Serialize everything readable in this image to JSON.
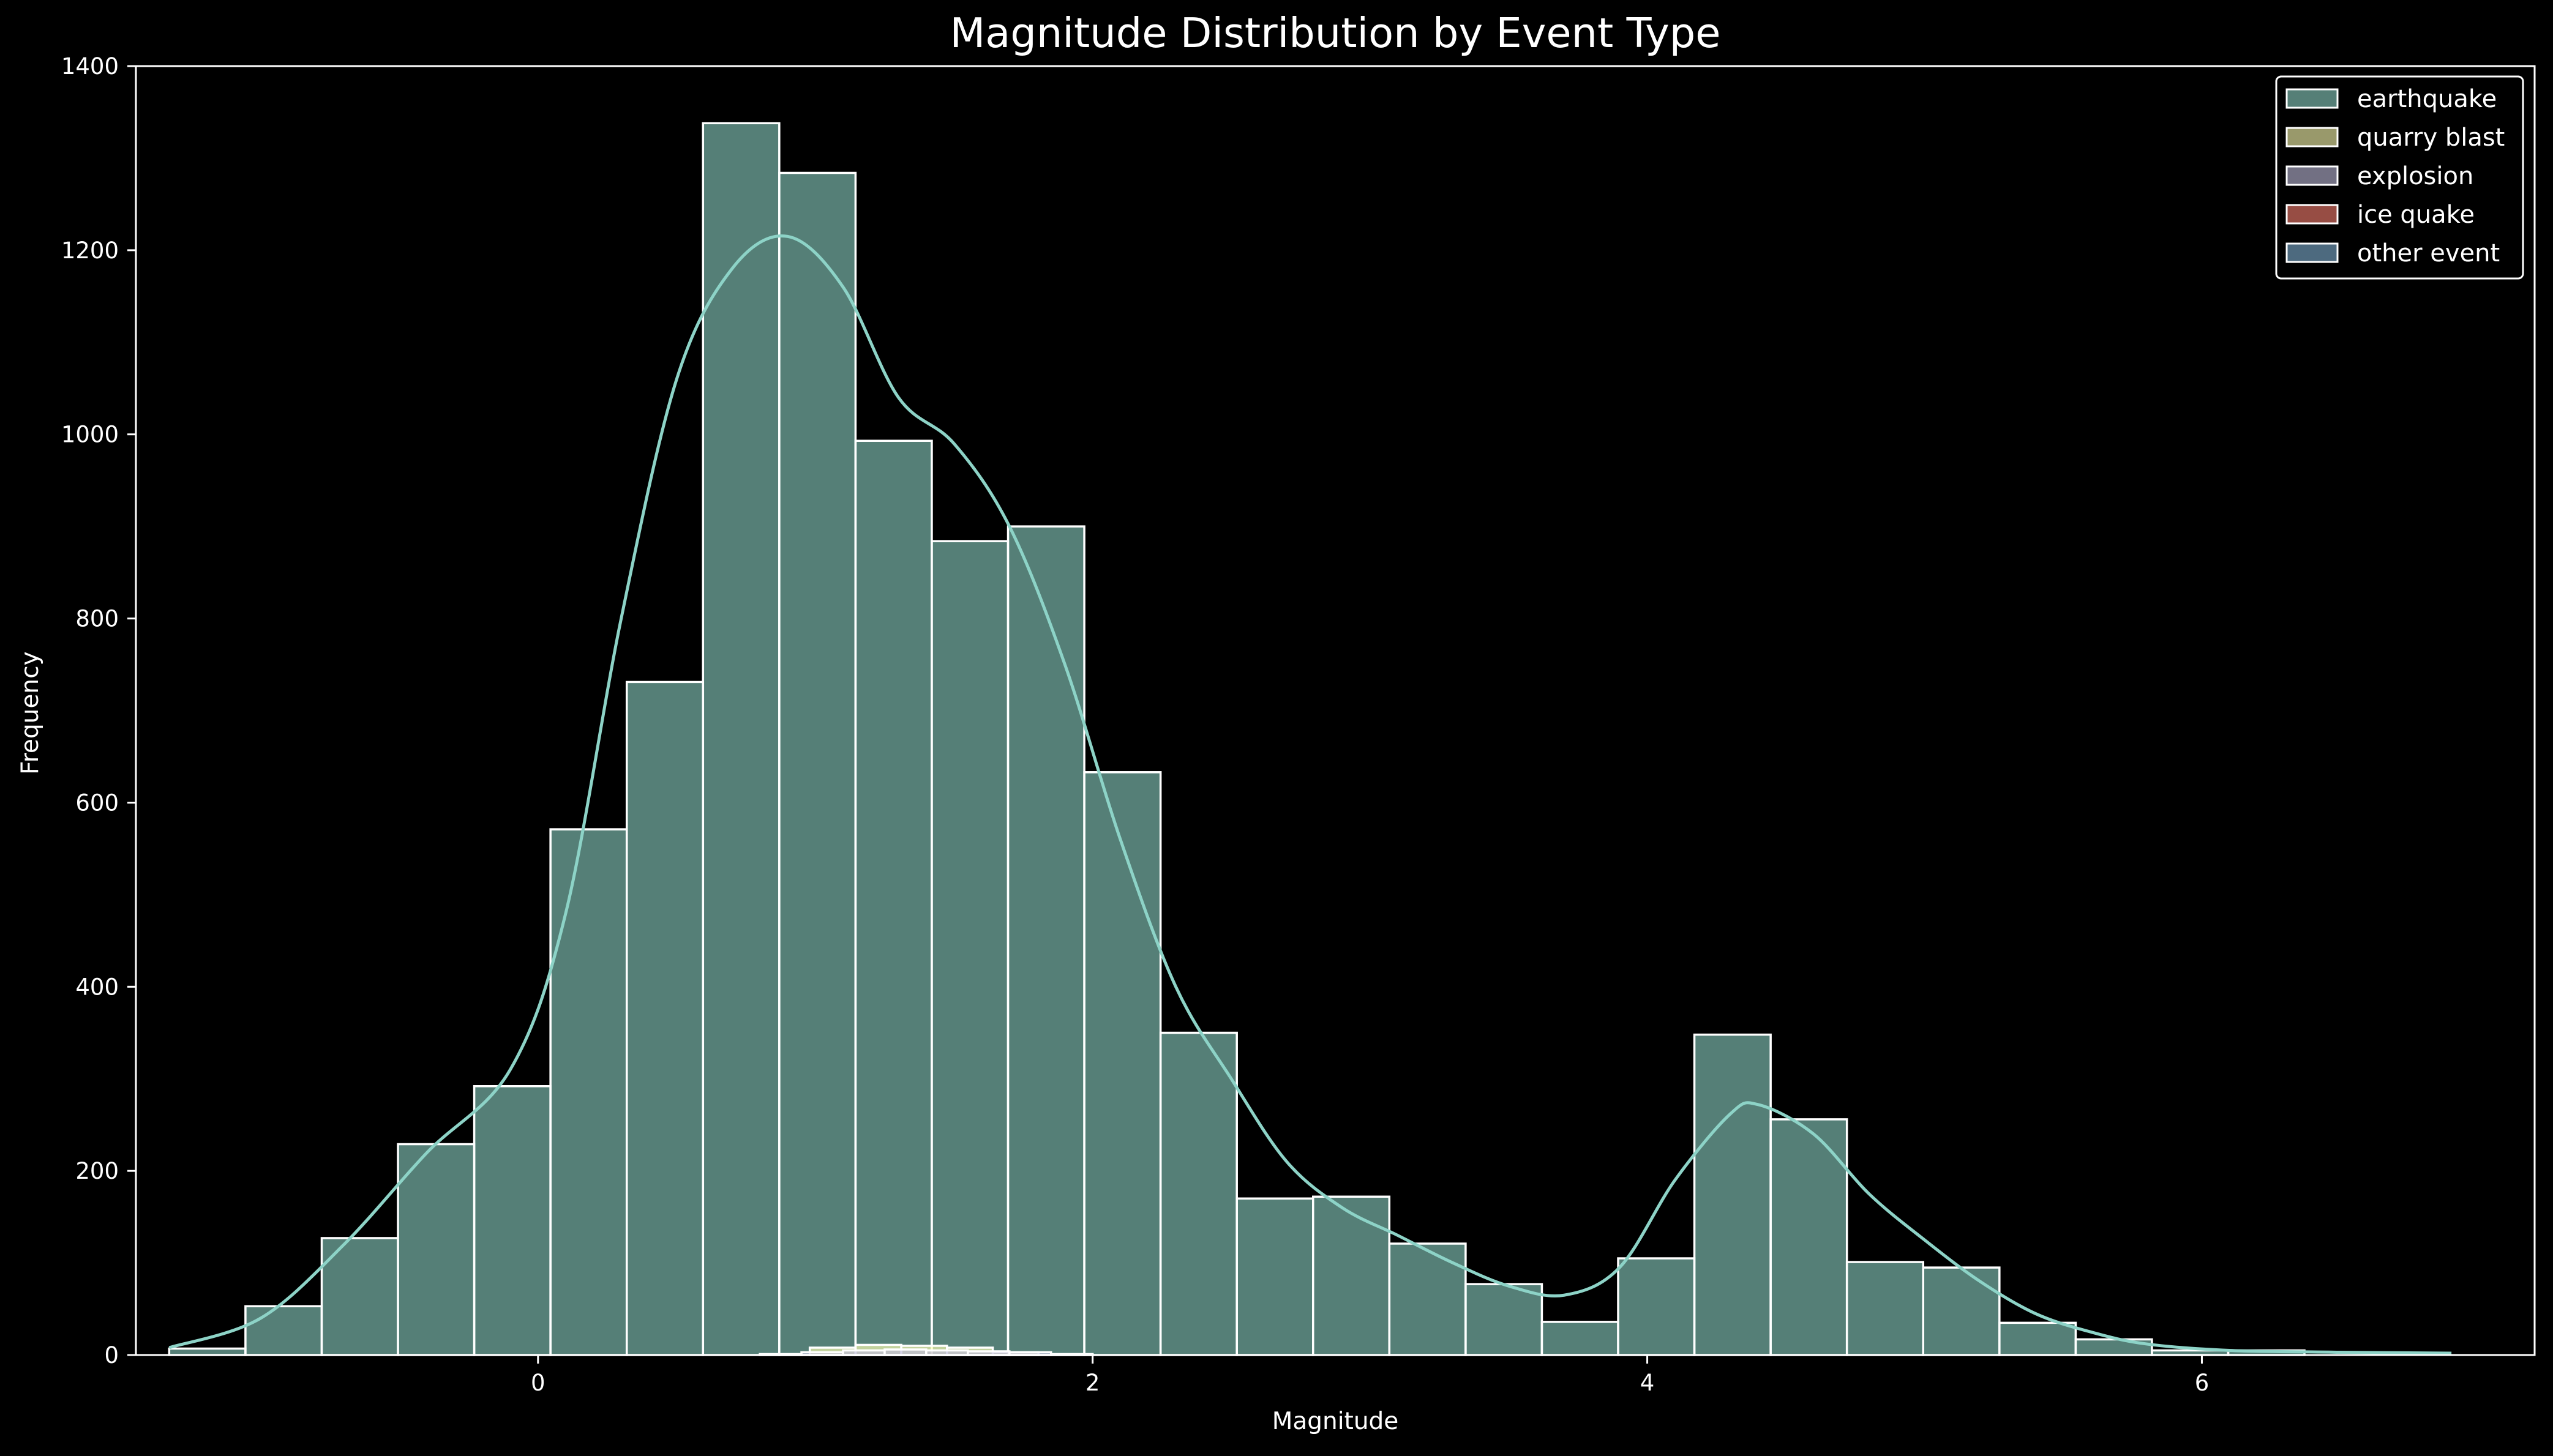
{
  "chart_data": {
    "type": "bar",
    "title": "Magnitude Distribution by Event Type",
    "xlabel": "Magnitude",
    "ylabel": "Frequency",
    "xlim": [
      -1.45,
      7.2
    ],
    "ylim": [
      0,
      1400
    ],
    "x_ticks": [
      0,
      2,
      4,
      6
    ],
    "y_ticks": [
      0,
      200,
      400,
      600,
      800,
      1000,
      1200,
      1400
    ],
    "grid": false,
    "legend_position": "top-right",
    "bin_edges": [
      -1.33,
      -1.055,
      -0.78,
      -0.505,
      -0.23,
      0.045,
      0.32,
      0.595,
      0.87,
      1.145,
      1.42,
      1.695,
      1.97,
      2.245,
      2.52,
      2.795,
      3.07,
      3.345,
      3.62,
      3.895,
      4.17,
      4.445,
      4.72,
      4.995,
      5.27,
      5.545,
      5.82,
      6.095,
      6.37
    ],
    "series": [
      {
        "name": "earthquake",
        "color": "#8dd3c7",
        "values": [
          7,
          53,
          127,
          229,
          292,
          571,
          731,
          1338,
          1284,
          993,
          884,
          900,
          633,
          350,
          170,
          172,
          121,
          77,
          36,
          105,
          348,
          256,
          101,
          95,
          35,
          17,
          5,
          5
        ],
        "kde": [
          [
            -1.33,
            8
          ],
          [
            -1.0,
            40
          ],
          [
            -0.7,
            120
          ],
          [
            -0.4,
            220
          ],
          [
            -0.1,
            310
          ],
          [
            0.1,
            480
          ],
          [
            0.3,
            800
          ],
          [
            0.5,
            1060
          ],
          [
            0.7,
            1180
          ],
          [
            0.9,
            1215
          ],
          [
            1.1,
            1160
          ],
          [
            1.3,
            1040
          ],
          [
            1.5,
            990
          ],
          [
            1.7,
            900
          ],
          [
            1.9,
            750
          ],
          [
            2.1,
            560
          ],
          [
            2.3,
            400
          ],
          [
            2.5,
            300
          ],
          [
            2.7,
            210
          ],
          [
            2.9,
            160
          ],
          [
            3.1,
            130
          ],
          [
            3.3,
            100
          ],
          [
            3.5,
            75
          ],
          [
            3.7,
            65
          ],
          [
            3.9,
            95
          ],
          [
            4.1,
            190
          ],
          [
            4.3,
            262
          ],
          [
            4.4,
            272
          ],
          [
            4.6,
            240
          ],
          [
            4.8,
            175
          ],
          [
            5.0,
            125
          ],
          [
            5.2,
            80
          ],
          [
            5.4,
            45
          ],
          [
            5.6,
            25
          ],
          [
            5.8,
            12
          ],
          [
            6.1,
            5
          ],
          [
            6.5,
            3
          ],
          [
            6.9,
            2
          ]
        ]
      },
      {
        "name": "quarry blast",
        "color": "#ffffb3",
        "values": [
          8,
          11,
          10,
          8,
          3
        ],
        "bin_edges": [
          0.98,
          1.145,
          1.31,
          1.475,
          1.64,
          1.805
        ]
      },
      {
        "name": "explosion",
        "color": "#bebada",
        "values": [
          1,
          3,
          5,
          6,
          5,
          4,
          3,
          1
        ],
        "bin_edges": [
          0.8,
          0.95,
          1.1,
          1.25,
          1.4,
          1.55,
          1.7,
          1.85,
          2.0
        ]
      },
      {
        "name": "ice quake",
        "color": "#fb8072",
        "values": []
      },
      {
        "name": "other event",
        "color": "#80b1d3",
        "values": []
      }
    ]
  }
}
